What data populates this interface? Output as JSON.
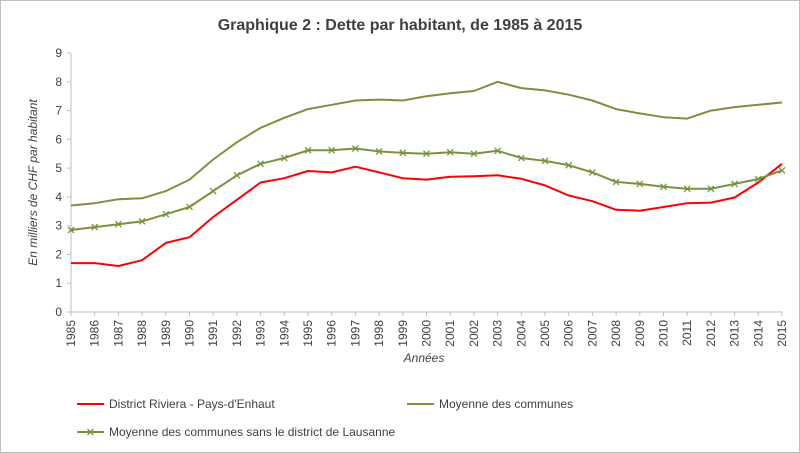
{
  "chart_data": {
    "type": "line",
    "title": "Graphique 2 : Dette par habitant, de 1985 à 2015",
    "xlabel": "Années",
    "ylabel": "En milliers de CHF par habitant",
    "ylim": [
      0,
      9
    ],
    "yticks": [
      "0",
      "1",
      "2",
      "3",
      "4",
      "5",
      "6",
      "7",
      "8",
      "9"
    ],
    "categories": [
      "1985",
      "1986",
      "1987",
      "1988",
      "1989",
      "1990",
      "1991",
      "1992",
      "1993",
      "1994",
      "1995",
      "1996",
      "1997",
      "1998",
      "1999",
      "2000",
      "2001",
      "2002",
      "2003",
      "2004",
      "2005",
      "2006",
      "2007",
      "2008",
      "2009",
      "2010",
      "2011",
      "2012",
      "2013",
      "2014",
      "2015"
    ],
    "grid": false,
    "legend_position": "bottom",
    "series": [
      {
        "name": "District Riviera - Pays-d'Enhaut",
        "color": "#ff0000",
        "marker": "none",
        "values": [
          1.7,
          1.7,
          1.6,
          1.8,
          2.4,
          2.6,
          3.3,
          3.9,
          4.5,
          4.65,
          4.9,
          4.85,
          5.05,
          4.85,
          4.65,
          4.6,
          4.7,
          4.72,
          4.75,
          4.63,
          4.4,
          4.05,
          3.85,
          3.55,
          3.52,
          3.65,
          3.78,
          3.8,
          3.98,
          4.5,
          5.15
        ]
      },
      {
        "name": "Moyenne des communes",
        "color": "#77933c",
        "marker": "none",
        "values": [
          3.7,
          3.78,
          3.92,
          3.95,
          4.2,
          4.6,
          5.3,
          5.9,
          6.4,
          6.75,
          7.05,
          7.2,
          7.35,
          7.38,
          7.35,
          7.5,
          7.6,
          7.68,
          8.0,
          7.78,
          7.7,
          7.55,
          7.35,
          7.05,
          6.9,
          6.77,
          6.72,
          7.0,
          7.12,
          7.2,
          7.28
        ]
      },
      {
        "name": "Moyenne des communes sans le district de Lausanne",
        "color": "#77933c",
        "marker": "x",
        "values": [
          2.85,
          2.95,
          3.05,
          3.15,
          3.4,
          3.65,
          4.2,
          4.75,
          5.15,
          5.35,
          5.62,
          5.62,
          5.68,
          5.58,
          5.53,
          5.5,
          5.55,
          5.5,
          5.6,
          5.35,
          5.25,
          5.1,
          4.85,
          4.52,
          4.45,
          4.35,
          4.28,
          4.28,
          4.45,
          4.62,
          4.92
        ]
      }
    ]
  }
}
